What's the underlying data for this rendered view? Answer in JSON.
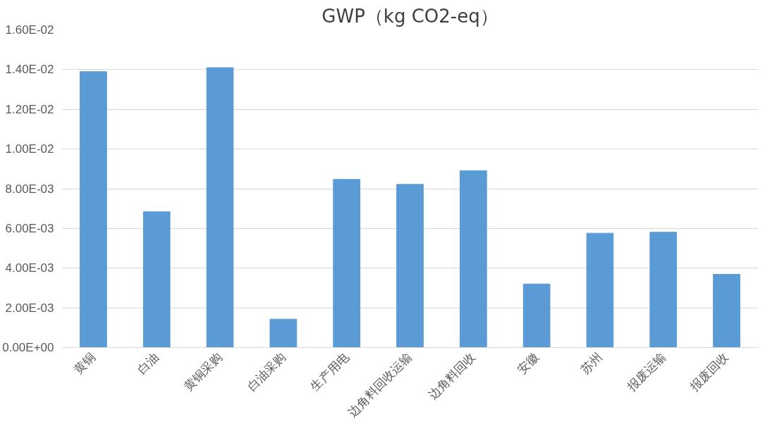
{
  "chart_data": {
    "type": "bar",
    "title": "GWP（kg CO2-eq）",
    "categories": [
      "黄铜",
      "白油",
      "黄铜采购",
      "白油采购",
      "生产用电",
      "边角料回收运输",
      "边角料回收",
      "安徽",
      "苏州",
      "报废运输",
      "报废回收"
    ],
    "values": [
      0.0139,
      0.00684,
      0.0141,
      0.00143,
      0.00847,
      0.00822,
      0.00891,
      0.0032,
      0.00576,
      0.00581,
      0.00369
    ],
    "color": "#5b9bd5",
    "ylim": [
      0,
      0.016
    ],
    "yticks": [
      {
        "value": 0,
        "label": "0.00E+00"
      },
      {
        "value": 0.002,
        "label": "2.00E-03"
      },
      {
        "value": 0.004,
        "label": "4.00E-03"
      },
      {
        "value": 0.006,
        "label": "6.00E-03"
      },
      {
        "value": 0.008,
        "label": "8.00E-03"
      },
      {
        "value": 0.01,
        "label": "1.00E-02"
      },
      {
        "value": 0.012,
        "label": "1.20E-02"
      },
      {
        "value": 0.014,
        "label": "1.40E-02"
      },
      {
        "value": 0.016,
        "label": "1.60E-02"
      }
    ],
    "grid": "y"
  }
}
